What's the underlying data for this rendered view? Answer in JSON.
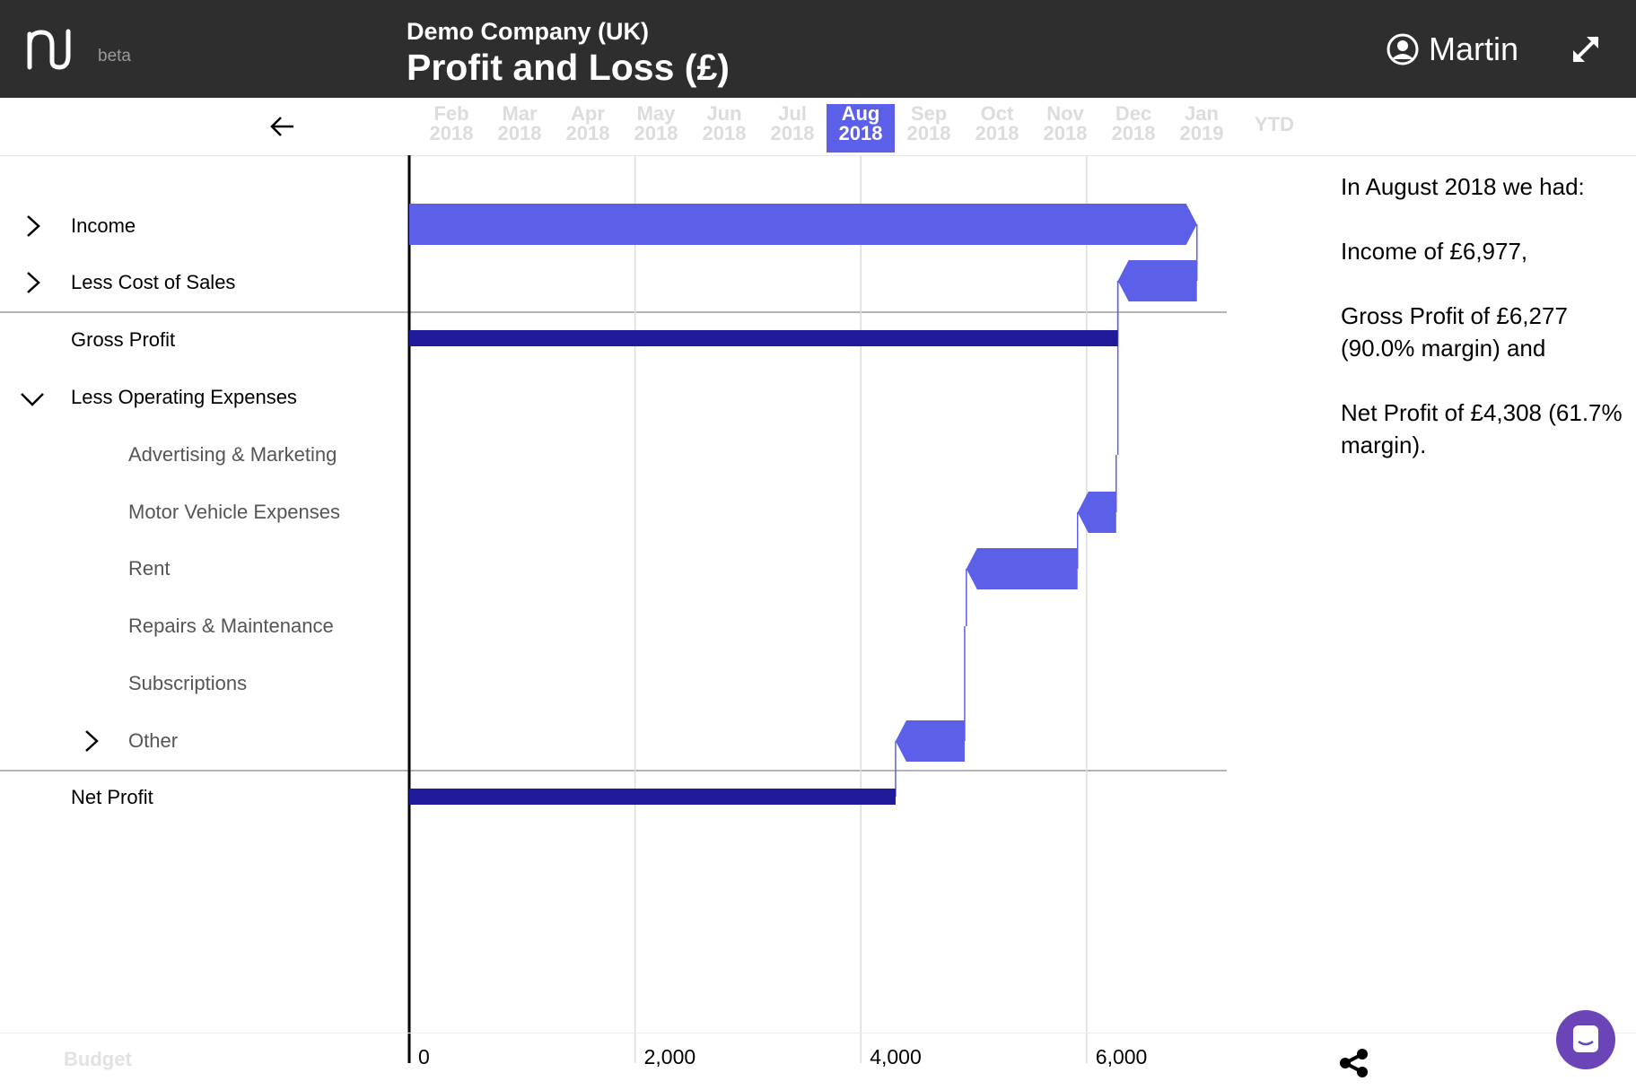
{
  "app": {
    "beta_label": "beta",
    "company": "Demo Company (UK)",
    "report_title": "Profit and Loss (£)"
  },
  "user": {
    "name": "Martin"
  },
  "months": [
    {
      "month": "Feb",
      "year": "2018",
      "selected": false
    },
    {
      "month": "Mar",
      "year": "2018",
      "selected": false
    },
    {
      "month": "Apr",
      "year": "2018",
      "selected": false
    },
    {
      "month": "May",
      "year": "2018",
      "selected": false
    },
    {
      "month": "Jun",
      "year": "2018",
      "selected": false
    },
    {
      "month": "Jul",
      "year": "2018",
      "selected": false
    },
    {
      "month": "Aug",
      "year": "2018",
      "selected": true
    },
    {
      "month": "Sep",
      "year": "2018",
      "selected": false
    },
    {
      "month": "Oct",
      "year": "2018",
      "selected": false
    },
    {
      "month": "Nov",
      "year": "2018",
      "selected": false
    },
    {
      "month": "Dec",
      "year": "2018",
      "selected": false
    },
    {
      "month": "Jan",
      "year": "2019",
      "selected": false
    }
  ],
  "ytd_label": "YTD",
  "rows": [
    {
      "label": "Income",
      "indent": 0,
      "chevron": "right"
    },
    {
      "label": "Less Cost of Sales",
      "indent": 0,
      "chevron": "right"
    },
    {
      "label": "Gross Profit",
      "indent": 0,
      "chevron": ""
    },
    {
      "label": "Less Operating Expenses",
      "indent": 0,
      "chevron": "down"
    },
    {
      "label": "Advertising & Marketing",
      "indent": 1,
      "chevron": ""
    },
    {
      "label": "Motor Vehicle Expenses",
      "indent": 1,
      "chevron": ""
    },
    {
      "label": "Rent",
      "indent": 1,
      "chevron": ""
    },
    {
      "label": "Repairs & Maintenance",
      "indent": 1,
      "chevron": ""
    },
    {
      "label": "Subscriptions",
      "indent": 1,
      "chevron": ""
    },
    {
      "label": "Other",
      "indent": 1,
      "chevron": "right"
    },
    {
      "label": "Net Profit",
      "indent": 0,
      "chevron": ""
    }
  ],
  "summary": {
    "line1": "In August 2018 we had:",
    "line2": "Income of £6,977,",
    "line3": "Gross Profit of £6,277 (90.0% margin) and",
    "line4": "Net Profit of £4,308 (61.7% margin)."
  },
  "budget_label": "Budget",
  "colors": {
    "header_bg": "#2e2e2e",
    "accent": "#5c5fe8",
    "total_bar": "#1e1a9a",
    "chat": "#6b45b8"
  },
  "chart_data": {
    "type": "bar",
    "subtype": "waterfall",
    "orientation": "horizontal",
    "categories": [
      "Income",
      "Less Cost of Sales",
      "Gross Profit",
      "Less Operating Expenses",
      "Advertising & Marketing",
      "Motor Vehicle Expenses",
      "Rent",
      "Repairs & Maintenance",
      "Subscriptions",
      "Other",
      "Net Profit"
    ],
    "bars": [
      {
        "category": "Income",
        "kind": "step",
        "start": 0,
        "end": 6977
      },
      {
        "category": "Less Cost of Sales",
        "kind": "step",
        "start": 6977,
        "end": 6277
      },
      {
        "category": "Gross Profit",
        "kind": "total",
        "start": 0,
        "end": 6277
      },
      {
        "category": "Advertising & Marketing",
        "kind": "tiny",
        "start": 6277,
        "end": 6262
      },
      {
        "category": "Motor Vehicle Expenses",
        "kind": "step",
        "start": 6262,
        "end": 5920
      },
      {
        "category": "Rent",
        "kind": "step",
        "start": 5920,
        "end": 4935
      },
      {
        "category": "Repairs & Maintenance",
        "kind": "tiny",
        "start": 4935,
        "end": 4920
      },
      {
        "category": "Other",
        "kind": "step",
        "start": 4920,
        "end": 4308
      },
      {
        "category": "Net Profit",
        "kind": "total",
        "start": 0,
        "end": 4308
      }
    ],
    "xlim": [
      0,
      7200
    ],
    "ticks": [
      0,
      2000,
      4000,
      6000
    ],
    "tick_labels": [
      "0",
      "2,000",
      "4,000",
      "6,000"
    ],
    "grid": true
  }
}
